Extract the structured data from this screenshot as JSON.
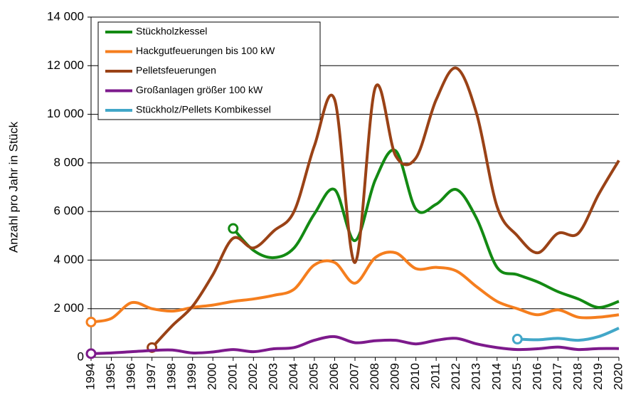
{
  "chart_data": {
    "type": "line",
    "y_label": "Anzahl pro Jahr in Stück",
    "x": [
      1994,
      1995,
      1996,
      1997,
      1998,
      1999,
      2000,
      2001,
      2002,
      2003,
      2004,
      2005,
      2006,
      2007,
      2008,
      2009,
      2010,
      2011,
      2012,
      2013,
      2014,
      2015,
      2016,
      2017,
      2018,
      2019,
      2020
    ],
    "xlim": [
      1994,
      2020
    ],
    "xticks": [
      1994,
      1995,
      1996,
      1997,
      1998,
      1999,
      2000,
      2001,
      2002,
      2003,
      2004,
      2005,
      2006,
      2007,
      2008,
      2009,
      2010,
      2011,
      2012,
      2013,
      2014,
      2015,
      2016,
      2017,
      2018,
      2019,
      2020
    ],
    "ylim": [
      0,
      14000
    ],
    "yticks": [
      0,
      {
        "value": 2000,
        "label": "2 000"
      },
      {
        "value": 4000,
        "label": "4 000"
      },
      {
        "value": 6000,
        "label": "6 000"
      },
      {
        "value": 8000,
        "label": "8 000"
      },
      {
        "value": 10000,
        "label": "10 000"
      },
      {
        "value": 12000,
        "label": "12 000"
      },
      {
        "value": 14000,
        "label": "14 000"
      }
    ],
    "grid": true,
    "smooth": true,
    "start_markers": true,
    "legend": "upper left",
    "series": [
      {
        "name": "Stückholzkessel",
        "color": "#138a13",
        "values": [
          null,
          null,
          null,
          null,
          null,
          null,
          null,
          5300,
          4400,
          4100,
          4500,
          5900,
          6900,
          4800,
          7300,
          8500,
          6100,
          6300,
          6900,
          5700,
          3700,
          3400,
          3100,
          2700,
          2400,
          2050,
          2300
        ]
      },
      {
        "name": "Hackgutfeuerungen bis 100 kW",
        "color": "#f57e1e",
        "values": [
          1450,
          1600,
          2250,
          2000,
          1900,
          2050,
          2150,
          2300,
          2400,
          2550,
          2800,
          3800,
          3900,
          3050,
          4100,
          4300,
          3650,
          3700,
          3550,
          2900,
          2300,
          2000,
          1750,
          1950,
          1650,
          1650,
          1750
        ]
      },
      {
        "name": "Pelletsfeuerungen",
        "color": "#9a4216",
        "values": [
          null,
          null,
          null,
          400,
          1300,
          2100,
          3400,
          4900,
          4500,
          5200,
          6000,
          8700,
          10600,
          3900,
          11100,
          8300,
          8200,
          10600,
          11900,
          10000,
          6200,
          5000,
          4300,
          5100,
          5100,
          6700,
          8100
        ]
      },
      {
        "name": "Großanlagen größer 100 kW",
        "color": "#7d1a8c",
        "values": [
          150,
          180,
          230,
          280,
          300,
          180,
          220,
          320,
          230,
          350,
          400,
          700,
          850,
          600,
          680,
          700,
          550,
          700,
          780,
          550,
          400,
          320,
          350,
          420,
          320,
          360,
          360
        ]
      },
      {
        "name": "Stückholz/Pellets Kombikessel",
        "color": "#42a7c8",
        "values": [
          null,
          null,
          null,
          null,
          null,
          null,
          null,
          null,
          null,
          null,
          null,
          null,
          null,
          null,
          null,
          null,
          null,
          null,
          null,
          null,
          null,
          750,
          720,
          780,
          700,
          850,
          1200
        ]
      }
    ]
  }
}
